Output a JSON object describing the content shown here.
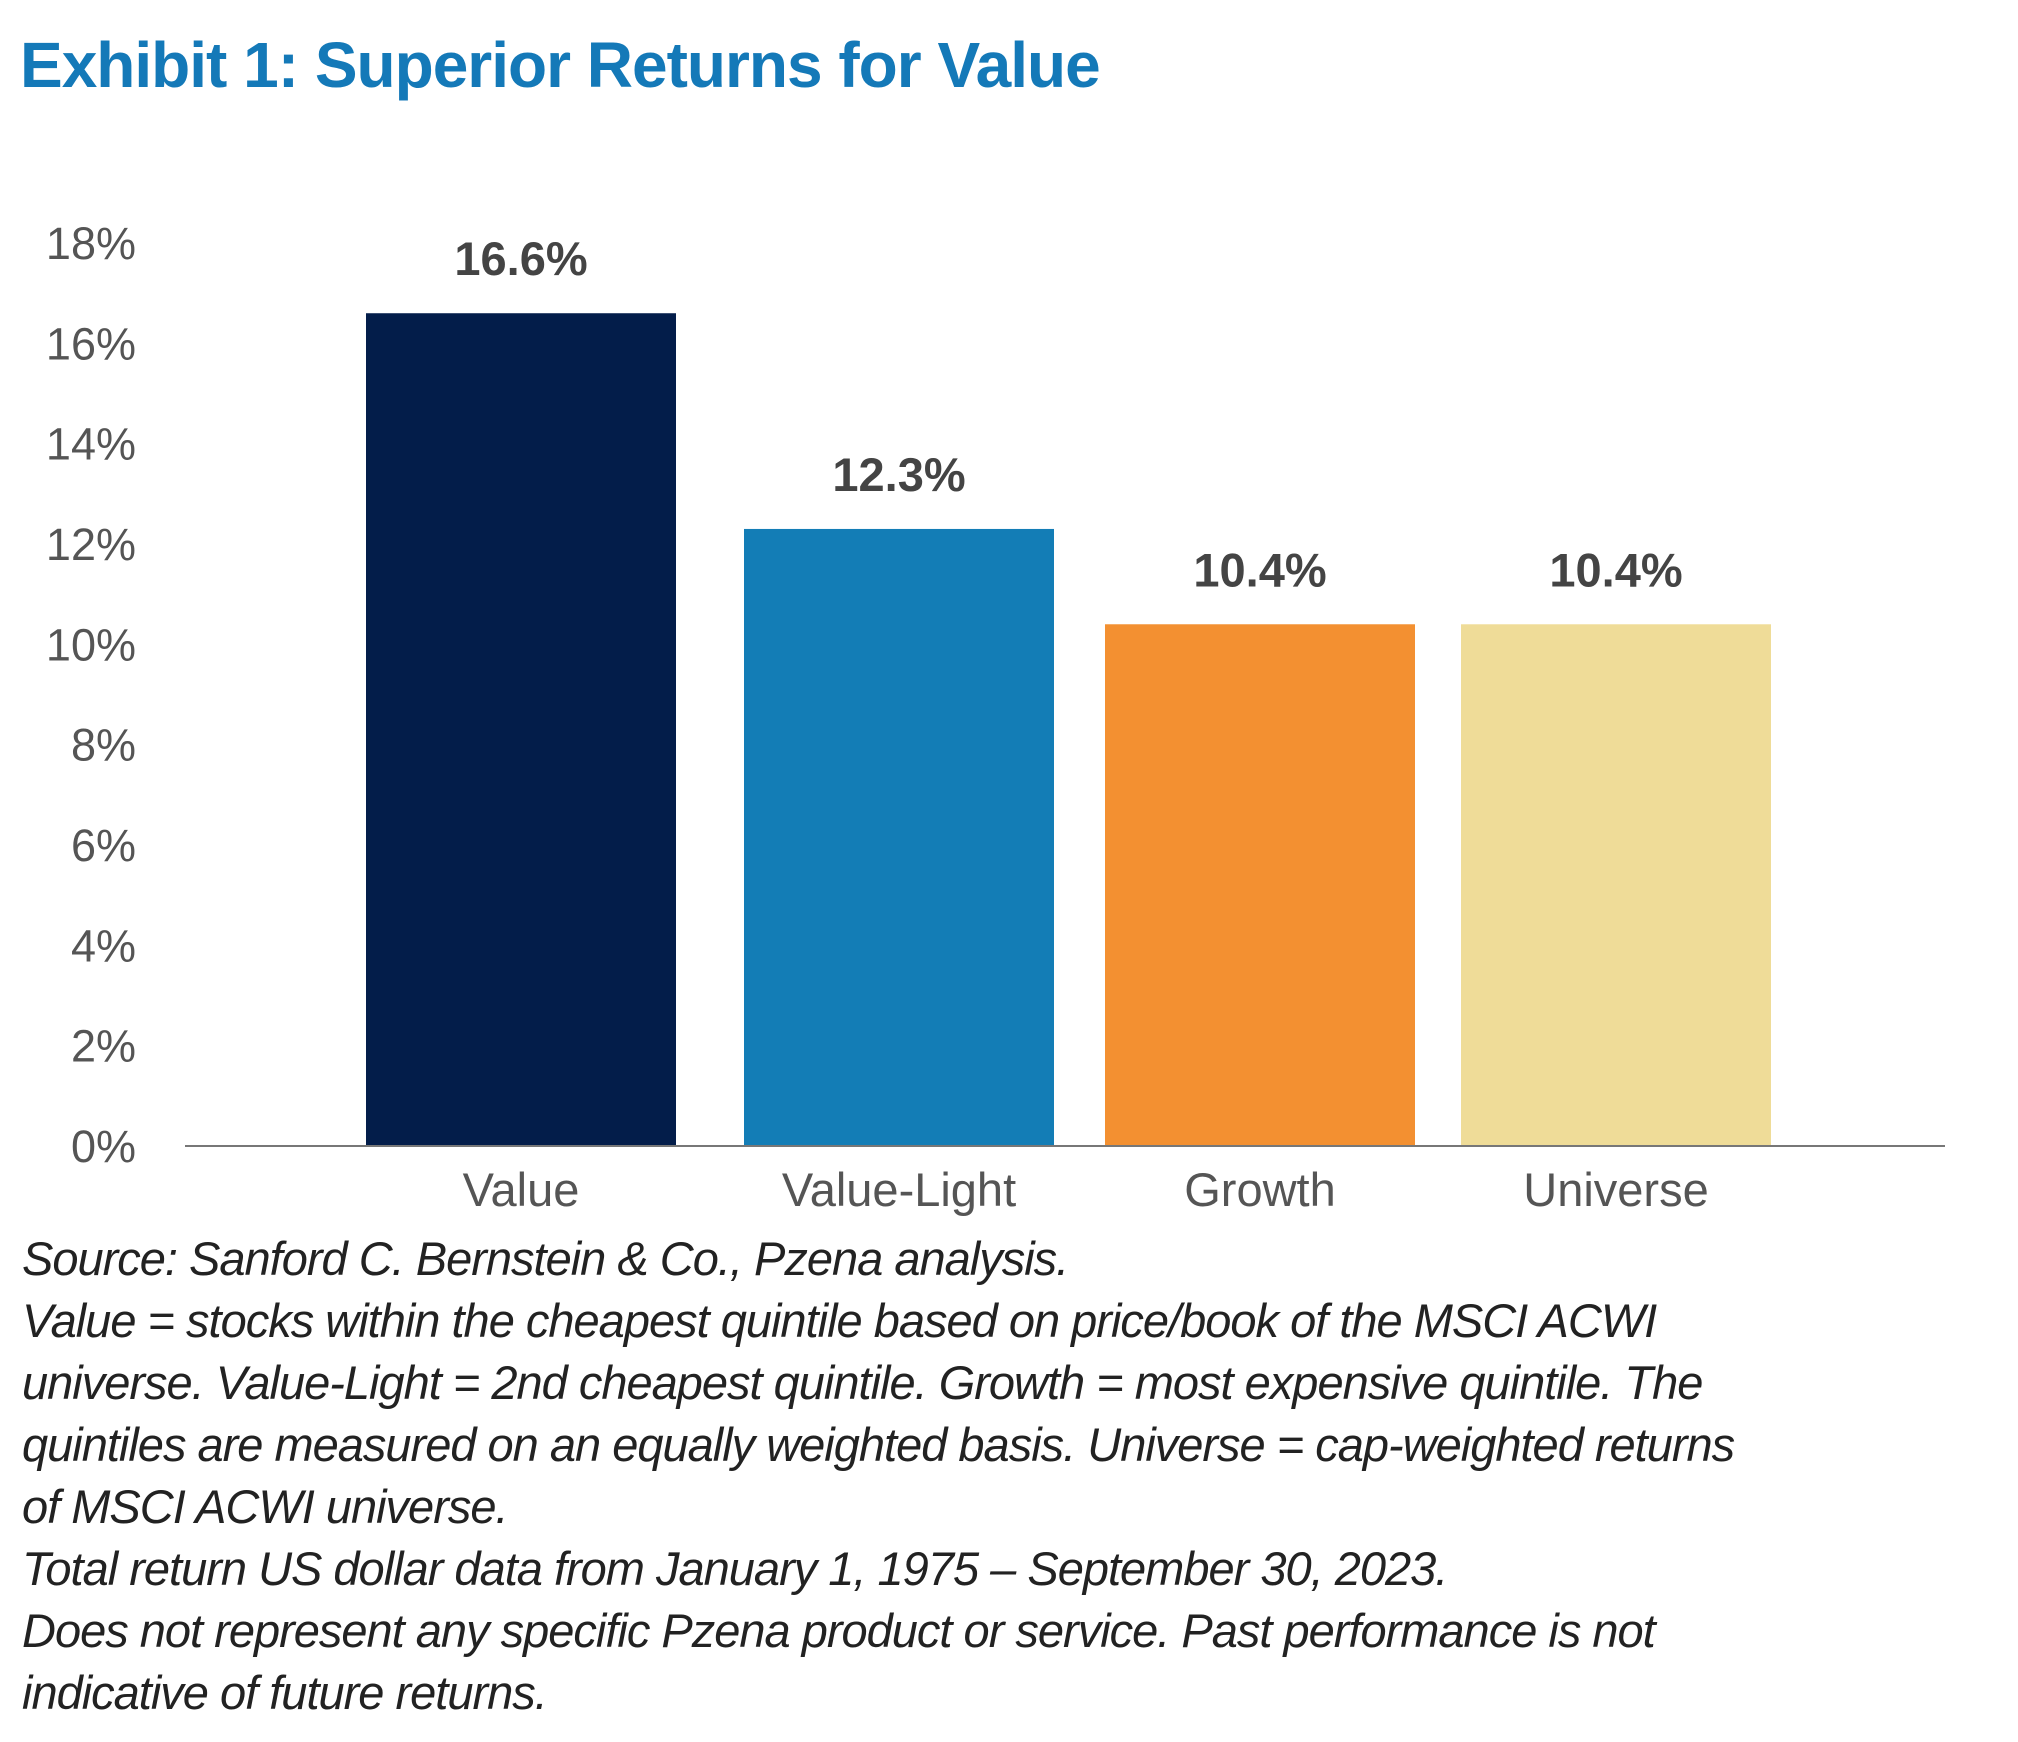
{
  "title": "Exhibit 1: Superior Returns for Value",
  "chart_data": {
    "type": "bar",
    "title": "Exhibit 1: Superior Returns for Value",
    "xlabel": "",
    "ylabel": "",
    "categories": [
      "Value",
      "Value-Light",
      "Growth",
      "Universe"
    ],
    "values": [
      16.6,
      12.3,
      10.4,
      10.4
    ],
    "data_labels": [
      "16.6%",
      "12.3%",
      "10.4%",
      "10.4%"
    ],
    "colors": [
      "#031d4a",
      "#137db6",
      "#f39031",
      "#efdc98"
    ],
    "ylim": [
      0,
      18
    ],
    "y_ticks": [
      0,
      2,
      4,
      6,
      8,
      10,
      12,
      14,
      16,
      18
    ],
    "y_tick_labels": [
      "0%",
      "2%",
      "4%",
      "6%",
      "8%",
      "10%",
      "12%",
      "14%",
      "16%",
      "18%"
    ],
    "grid": false,
    "legend": "none"
  },
  "notes": [
    "Source: Sanford C. Bernstein & Co., Pzena analysis.",
    "Value = stocks within the cheapest quintile based on price/book of the MSCI ACWI",
    "universe. Value-Light = 2nd cheapest quintile. Growth = most expensive quintile. The",
    "quintiles are measured on an equally weighted basis. Universe = cap-weighted returns",
    "of MSCI ACWI universe.",
    "Total return US dollar data from January 1, 1975 – September 30, 2023.",
    "Does not represent any specific Pzena product or service. Past performance is not",
    "indicative of future returns."
  ]
}
